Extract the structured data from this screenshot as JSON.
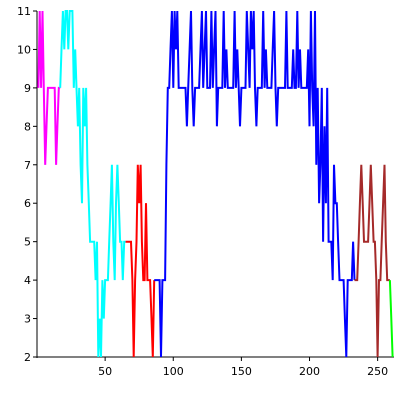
{
  "chart_data": {
    "type": "line",
    "title": "",
    "xlabel": "",
    "ylabel": "",
    "xlim": [
      0,
      262
    ],
    "ylim": [
      2,
      11
    ],
    "grid": false,
    "legend": "none",
    "x_ticks": [
      50,
      100,
      150,
      200,
      250
    ],
    "x_tick_labels": [
      "50",
      "100",
      "150",
      "200",
      "250"
    ],
    "y_ticks": [
      2,
      3,
      4,
      5,
      6,
      7,
      8,
      9,
      10,
      11
    ],
    "y_tick_labels": [
      "2",
      "3",
      "4",
      "5",
      "6",
      "7",
      "8",
      "9",
      "10",
      "11"
    ],
    "series": [
      {
        "color": "#ff00ff",
        "x": [
          1,
          2,
          3,
          4,
          5,
          6,
          7,
          8,
          9,
          10,
          11,
          12,
          13,
          14,
          15,
          16,
          17
        ],
        "y": [
          9,
          11,
          9,
          11,
          9,
          7,
          8,
          9,
          9,
          9,
          9,
          9,
          9,
          7,
          8,
          9,
          9
        ]
      },
      {
        "color": "#00ffff",
        "x": [
          17,
          18,
          19,
          20,
          21,
          22,
          23,
          24,
          25,
          26,
          27,
          28,
          29,
          30,
          31,
          32,
          33,
          34,
          35,
          36,
          37,
          38,
          39,
          40,
          41,
          42,
          43,
          44,
          45,
          46,
          47,
          48,
          49,
          50,
          51,
          52,
          53,
          54,
          55,
          56,
          57,
          58,
          59,
          60,
          61,
          62,
          63,
          64,
          65
        ],
        "y": [
          9,
          10,
          11,
          10,
          11,
          11,
          10,
          11,
          11,
          11,
          9,
          10,
          9,
          8,
          9,
          7,
          6,
          9,
          8,
          9,
          7,
          6,
          5,
          5,
          5,
          5,
          4,
          5,
          2,
          3,
          2,
          4,
          3,
          4,
          4,
          4,
          5,
          6,
          7,
          5,
          4,
          6,
          7,
          6,
          5,
          5,
          4,
          5,
          5
        ]
      },
      {
        "color": "#ff0000",
        "x": [
          65,
          66,
          67,
          68,
          69,
          70,
          71,
          72,
          73,
          74,
          75,
          76,
          77,
          78,
          79,
          80,
          81,
          82,
          83,
          84,
          85,
          86
        ],
        "y": [
          5,
          5,
          5,
          5,
          5,
          4,
          2,
          4,
          5,
          7,
          6,
          7,
          5,
          4,
          4,
          6,
          4,
          4,
          4,
          3,
          2,
          4
        ]
      },
      {
        "color": "#0000ff",
        "x": [
          86,
          87,
          88,
          89,
          90,
          91,
          92,
          93,
          94,
          95,
          96,
          97,
          98,
          99,
          100,
          101,
          102,
          103,
          104,
          105,
          106,
          107,
          108,
          109,
          110,
          111,
          112,
          113,
          114,
          115,
          116,
          117,
          118,
          119,
          120,
          121,
          122,
          123,
          124,
          125,
          126,
          127,
          128,
          129,
          130,
          131,
          132,
          133,
          134,
          135,
          136,
          137,
          138,
          139,
          140,
          141,
          142,
          143,
          144,
          145,
          146,
          147,
          148,
          149,
          150,
          151,
          152,
          153,
          154,
          155,
          156,
          157,
          158,
          159,
          160,
          161,
          162,
          163,
          164,
          165,
          166,
          167,
          168,
          169,
          170,
          171,
          172,
          173,
          174,
          175,
          176,
          177,
          178,
          179,
          180,
          181,
          182,
          183,
          184,
          185,
          186,
          187,
          188,
          189,
          190,
          191,
          192,
          193,
          194,
          195,
          196,
          197,
          198,
          199,
          200,
          201,
          202,
          203,
          204,
          205,
          206,
          207,
          208,
          209,
          210,
          211,
          212,
          213,
          214,
          215,
          216,
          217,
          218,
          219,
          220,
          221,
          222,
          223,
          224,
          225,
          226,
          227,
          228,
          229,
          230,
          231,
          232,
          233
        ],
        "y": [
          4,
          4,
          4,
          4,
          4,
          2,
          4,
          4,
          4,
          7,
          9,
          9,
          10,
          11,
          9,
          11,
          10,
          11,
          9,
          9,
          9,
          9,
          9,
          9,
          8,
          9,
          10,
          11,
          9,
          8,
          9,
          9,
          9,
          9,
          10,
          11,
          9,
          10,
          11,
          9,
          9,
          9,
          11,
          9,
          10,
          11,
          8,
          9,
          9,
          9,
          9,
          11,
          9,
          10,
          9,
          9,
          9,
          9,
          9,
          11,
          9,
          10,
          9,
          8,
          9,
          9,
          9,
          9,
          11,
          10,
          9,
          11,
          10,
          11,
          9,
          8,
          9,
          9,
          9,
          9,
          11,
          9,
          10,
          9,
          9,
          9,
          9,
          10,
          11,
          9,
          8,
          9,
          9,
          9,
          9,
          9,
          9,
          11,
          9,
          9,
          9,
          9,
          10,
          9,
          9,
          11,
          9,
          10,
          9,
          9,
          9,
          9,
          9,
          10,
          8,
          11,
          9,
          8,
          11,
          7,
          9,
          6,
          7,
          9,
          5,
          8,
          6,
          9,
          5,
          5,
          5,
          4,
          7,
          6,
          6,
          5,
          4,
          4,
          4,
          4,
          3,
          2,
          4,
          4,
          4,
          4,
          5,
          4
        ]
      },
      {
        "color": "#a52a2a",
        "x": [
          233,
          234,
          235,
          236,
          237,
          238,
          239,
          240,
          241,
          242,
          243,
          244,
          245,
          246,
          247,
          248,
          249,
          250,
          251,
          252,
          253,
          254,
          255,
          256,
          257,
          258,
          259
        ],
        "y": [
          4,
          4,
          4,
          5,
          6,
          7,
          6,
          5,
          5,
          5,
          5,
          6,
          7,
          6,
          5,
          5,
          4,
          2,
          4,
          4,
          5,
          6,
          7,
          5,
          4,
          4,
          4
        ]
      },
      {
        "color": "#00ff00",
        "x": [
          259,
          260,
          261
        ],
        "y": [
          4,
          3,
          2
        ]
      }
    ]
  }
}
